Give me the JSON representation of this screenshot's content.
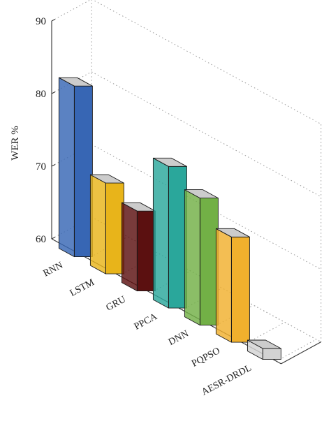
{
  "chart_data": {
    "type": "bar",
    "ylabel": "WER %",
    "ylim": [
      60,
      90
    ],
    "yticks": [
      60,
      70,
      80,
      90
    ],
    "grid": true,
    "categories": [
      "RNN",
      "LSTM",
      "GRU",
      "PPCA",
      "DNN",
      "PQPSO",
      "AESR-DRDL"
    ],
    "values": [
      83.5,
      72.5,
      71,
      79.5,
      77.5,
      74.5,
      61.5
    ],
    "colors": [
      "#3766b4",
      "#e8b41a",
      "#5b1010",
      "#2aa79b",
      "#72b046",
      "#f0b02d",
      "#d3d3d3"
    ],
    "top_color": "#cccccc"
  }
}
